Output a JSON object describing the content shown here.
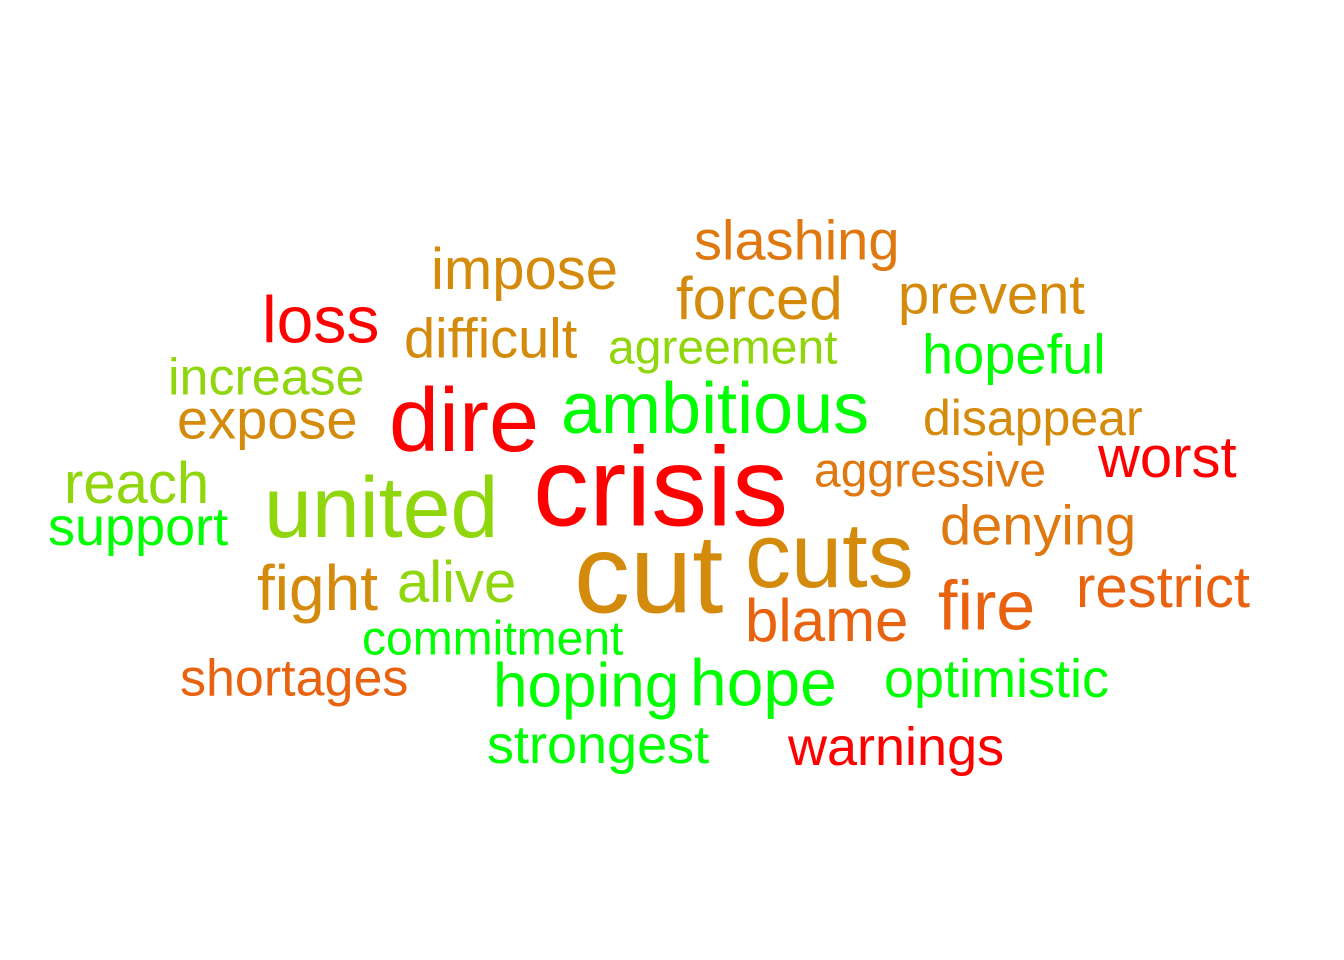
{
  "palette": {
    "red": "#ff0000",
    "dark_orange": "#e8620f",
    "orange": "#e07810",
    "gold": "#d48a0a",
    "yellow_green": "#8fd60c",
    "green": "#00ff00"
  },
  "words": [
    {
      "text": "slashing",
      "color": "orange"
    },
    {
      "text": "impose",
      "color": "gold"
    },
    {
      "text": "prevent",
      "color": "gold"
    },
    {
      "text": "forced",
      "color": "gold"
    },
    {
      "text": "loss",
      "color": "red"
    },
    {
      "text": "difficult",
      "color": "gold"
    },
    {
      "text": "agreement",
      "color": "yellow_green"
    },
    {
      "text": "hopeful",
      "color": "green"
    },
    {
      "text": "increase",
      "color": "yellow_green"
    },
    {
      "text": "expose",
      "color": "gold"
    },
    {
      "text": "dire",
      "color": "red"
    },
    {
      "text": "ambitious",
      "color": "green"
    },
    {
      "text": "disappear",
      "color": "gold"
    },
    {
      "text": "worst",
      "color": "red"
    },
    {
      "text": "crisis",
      "color": "red"
    },
    {
      "text": "aggressive",
      "color": "orange"
    },
    {
      "text": "reach",
      "color": "yellow_green"
    },
    {
      "text": "united",
      "color": "yellow_green"
    },
    {
      "text": "support",
      "color": "green"
    },
    {
      "text": "denying",
      "color": "orange"
    },
    {
      "text": "cuts",
      "color": "gold"
    },
    {
      "text": "cut",
      "color": "gold"
    },
    {
      "text": "fight",
      "color": "gold"
    },
    {
      "text": "alive",
      "color": "yellow_green"
    },
    {
      "text": "restrict",
      "color": "dark_orange"
    },
    {
      "text": "fire",
      "color": "dark_orange"
    },
    {
      "text": "blame",
      "color": "dark_orange"
    },
    {
      "text": "commitment",
      "color": "green"
    },
    {
      "text": "shortages",
      "color": "dark_orange"
    },
    {
      "text": "hoping",
      "color": "green"
    },
    {
      "text": "hope",
      "color": "green"
    },
    {
      "text": "optimistic",
      "color": "green"
    },
    {
      "text": "strongest",
      "color": "green"
    },
    {
      "text": "warnings",
      "color": "red"
    }
  ]
}
